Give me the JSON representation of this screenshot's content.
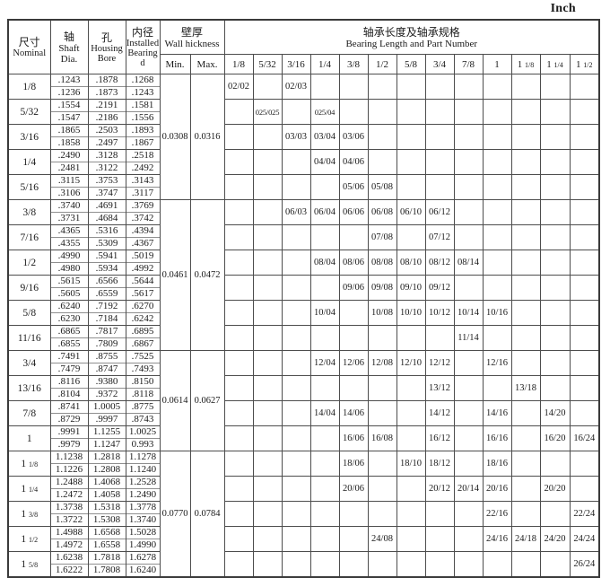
{
  "page": {
    "unit_label": "Inch"
  },
  "table": {
    "headers": {
      "nominal": {
        "zh": "尺寸",
        "en": "Nominal"
      },
      "shaft": {
        "zh": "轴",
        "en1": "Shaft",
        "en2": "Dia."
      },
      "housing": {
        "zh": "孔",
        "en1": "Housing",
        "en2": "Bore"
      },
      "installed": {
        "zh": "内径",
        "en1": "Installed",
        "en2": "Bearing",
        "en3": "d"
      },
      "wall": {
        "zh": "壁厚",
        "en": "Wall hickness"
      },
      "min": "Min.",
      "max": "Max.",
      "bearing_length": {
        "zh": "轴承长度及轴承规格",
        "en": "Bearing Length and Part Number"
      }
    },
    "length_columns": [
      "1/8",
      "5/32",
      "3/16",
      "1/4",
      "3/8",
      "1/2",
      "5/8",
      "3/4",
      "7/8",
      "1",
      "1 1/8",
      "1 1/4",
      "1 1/2"
    ],
    "wall_groups": [
      {
        "start": 0,
        "span": 5,
        "min": "0.0308",
        "max": "0.0316"
      },
      {
        "start": 5,
        "span": 6,
        "min": "0.0461",
        "max": "0.0472"
      },
      {
        "start": 11,
        "span": 4,
        "min": "0.0614",
        "max": "0.0627"
      },
      {
        "start": 15,
        "span": 5,
        "min": "0.0770",
        "max": "0.0784"
      }
    ],
    "rows": [
      {
        "nominal": "1/8",
        "shaft": [
          ".1243",
          ".1236"
        ],
        "housing": [
          ".1878",
          ".1873"
        ],
        "installed": [
          ".1268",
          ".1243"
        ],
        "parts": {
          "1/8": "02/02",
          "3/16": "02/03"
        }
      },
      {
        "nominal": "5/32",
        "shaft": [
          ".1554",
          ".1547"
        ],
        "housing": [
          ".2191",
          ".2186"
        ],
        "installed": [
          ".1581",
          ".1556"
        ],
        "parts": {
          "5/32": "025/025",
          "1/4": "025/04"
        }
      },
      {
        "nominal": "3/16",
        "shaft": [
          ".1865",
          ".1858"
        ],
        "housing": [
          ".2503",
          ".2497"
        ],
        "installed": [
          ".1893",
          ".1867"
        ],
        "parts": {
          "3/16": "03/03",
          "1/4": "03/04",
          "3/8": "03/06"
        }
      },
      {
        "nominal": "1/4",
        "shaft": [
          ".2490",
          ".2481"
        ],
        "housing": [
          ".3128",
          ".3122"
        ],
        "installed": [
          ".2518",
          ".2492"
        ],
        "parts": {
          "1/4": "04/04",
          "3/8": "04/06"
        }
      },
      {
        "nominal": "5/16",
        "shaft": [
          ".3115",
          ".3106"
        ],
        "housing": [
          ".3753",
          ".3747"
        ],
        "installed": [
          ".3143",
          ".3117"
        ],
        "parts": {
          "3/8": "05/06",
          "1/2": "05/08"
        }
      },
      {
        "nominal": "3/8",
        "shaft": [
          ".3740",
          ".3731"
        ],
        "housing": [
          ".4691",
          ".4684"
        ],
        "installed": [
          ".3769",
          ".3742"
        ],
        "parts": {
          "3/16": "06/03",
          "1/4": "06/04",
          "3/8": "06/06",
          "1/2": "06/08",
          "5/8": "06/10",
          "3/4": "06/12"
        }
      },
      {
        "nominal": "7/16",
        "shaft": [
          ".4365",
          ".4355"
        ],
        "housing": [
          ".5316",
          ".5309"
        ],
        "installed": [
          ".4394",
          ".4367"
        ],
        "parts": {
          "1/2": "07/08",
          "3/4": "07/12"
        }
      },
      {
        "nominal": "1/2",
        "shaft": [
          ".4990",
          ".4980"
        ],
        "housing": [
          ".5941",
          ".5934"
        ],
        "installed": [
          ".5019",
          ".4992"
        ],
        "parts": {
          "1/4": "08/04",
          "3/8": "08/06",
          "1/2": "08/08",
          "5/8": "08/10",
          "3/4": "08/12",
          "7/8": "08/14"
        }
      },
      {
        "nominal": "9/16",
        "shaft": [
          ".5615",
          ".5605"
        ],
        "housing": [
          ".6566",
          ".6559"
        ],
        "installed": [
          ".5644",
          ".5617"
        ],
        "parts": {
          "3/8": "09/06",
          "1/2": "09/08",
          "5/8": "09/10",
          "3/4": "09/12"
        }
      },
      {
        "nominal": "5/8",
        "shaft": [
          ".6240",
          ".6230"
        ],
        "housing": [
          ".7192",
          ".7184"
        ],
        "installed": [
          ".6270",
          ".6242"
        ],
        "parts": {
          "1/4": "10/04",
          "1/2": "10/08",
          "5/8": "10/10",
          "3/4": "10/12",
          "7/8": "10/14",
          "1": "10/16"
        }
      },
      {
        "nominal": "11/16",
        "shaft": [
          ".6865",
          ".6855"
        ],
        "housing": [
          ".7817",
          ".7809"
        ],
        "installed": [
          ".6895",
          ".6867"
        ],
        "parts": {
          "7/8": "11/14"
        }
      },
      {
        "nominal": "3/4",
        "shaft": [
          ".7491",
          ".7479"
        ],
        "housing": [
          ".8755",
          ".8747"
        ],
        "installed": [
          ".7525",
          ".7493"
        ],
        "parts": {
          "1/4": "12/04",
          "3/8": "12/06",
          "1/2": "12/08",
          "5/8": "12/10",
          "3/4": "12/12",
          "1": "12/16"
        }
      },
      {
        "nominal": "13/16",
        "shaft": [
          ".8116",
          ".8104"
        ],
        "housing": [
          ".9380",
          ".9372"
        ],
        "installed": [
          ".8150",
          ".8118"
        ],
        "parts": {
          "3/4": "13/12",
          "1 1/8": "13/18"
        }
      },
      {
        "nominal": "7/8",
        "shaft": [
          ".8741",
          ".8729"
        ],
        "housing": [
          "1.0005",
          ".9997"
        ],
        "installed": [
          ".8775",
          ".8743"
        ],
        "parts": {
          "1/4": "14/04",
          "3/8": "14/06",
          "3/4": "14/12",
          "1": "14/16",
          "1 1/4": "14/20"
        }
      },
      {
        "nominal": "1",
        "shaft": [
          ".9991",
          ".9979"
        ],
        "housing": [
          "1.1255",
          "1.1247"
        ],
        "installed": [
          "1.0025",
          "0.993"
        ],
        "parts": {
          "3/8": "16/06",
          "1/2": "16/08",
          "3/4": "16/12",
          "1": "16/16",
          "1 1/4": "16/20",
          "1 1/2": "16/24"
        }
      },
      {
        "nominal": "1 1/8",
        "shaft": [
          "1.1238",
          "1.1226"
        ],
        "housing": [
          "1.2818",
          "1.2808"
        ],
        "installed": [
          "1.1278",
          "1.1240"
        ],
        "parts": {
          "3/8": "18/06",
          "5/8": "18/10",
          "3/4": "18/12",
          "1": "18/16"
        }
      },
      {
        "nominal": "1 1/4",
        "shaft": [
          "1.2488",
          "1.2472"
        ],
        "housing": [
          "1.4068",
          "1.4058"
        ],
        "installed": [
          "1.2528",
          "1.2490"
        ],
        "parts": {
          "3/8": "20/06",
          "3/4": "20/12",
          "7/8": "20/14",
          "1": "20/16",
          "1 1/4": "20/20"
        }
      },
      {
        "nominal": "1 3/8",
        "shaft": [
          "1.3738",
          "1.3722"
        ],
        "housing": [
          "1.5318",
          "1.5308"
        ],
        "installed": [
          "1.3778",
          "1.3740"
        ],
        "parts": {
          "1": "22/16",
          "1 1/2": "22/24"
        }
      },
      {
        "nominal": "1 1/2",
        "shaft": [
          "1.4988",
          "1.4972"
        ],
        "housing": [
          "1.6568",
          "1.6558"
        ],
        "installed": [
          "1.5028",
          "1.4990"
        ],
        "parts": {
          "1/2": "24/08",
          "1": "24/16",
          "1 1/8": "24/18",
          "1 1/4": "24/20",
          "1 1/2": "24/24"
        }
      },
      {
        "nominal": "1 5/8",
        "shaft": [
          "1.6238",
          "1.6222"
        ],
        "housing": [
          "1.7818",
          "1.7808"
        ],
        "installed": [
          "1.6278",
          "1.6240"
        ],
        "parts": {
          "1 1/2": "26/24"
        }
      }
    ]
  }
}
